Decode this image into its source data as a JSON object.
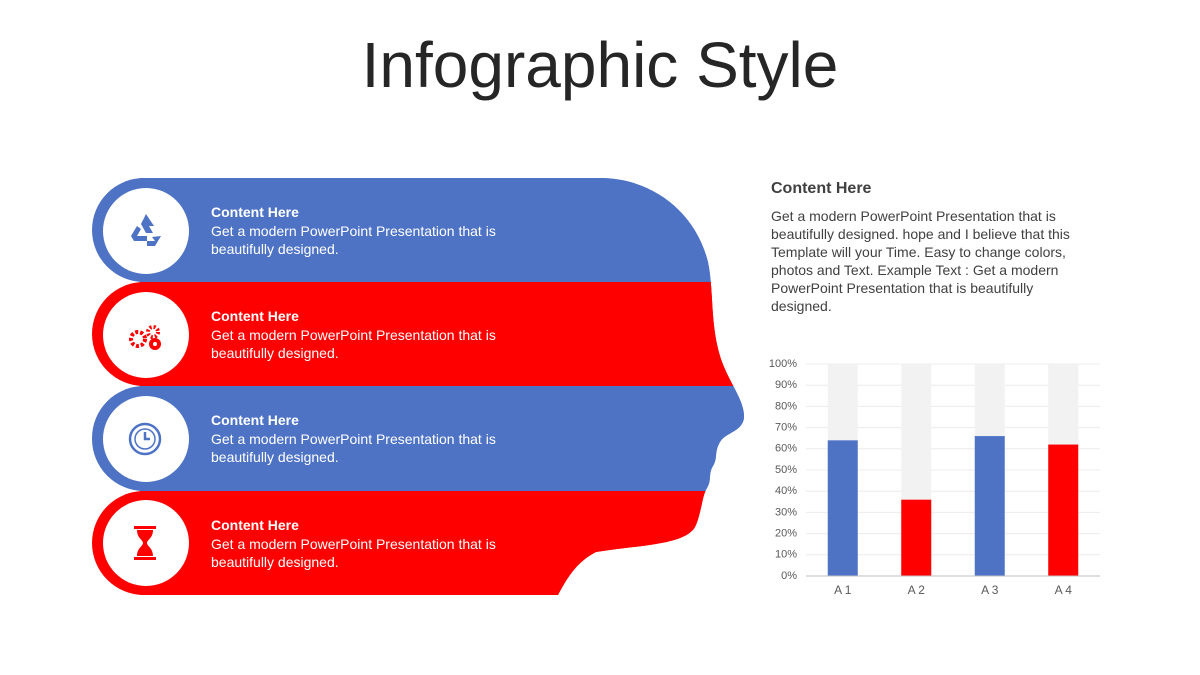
{
  "title": "Infographic Style",
  "bands": [
    {
      "heading": "Content  Here",
      "text": "Get a modern PowerPoint  Presentation that is beautifully designed.",
      "color": "#4e73c5"
    },
    {
      "heading": "Content  Here",
      "text": "Get a modern PowerPoint  Presentation that is beautifully designed.",
      "color": "#ff0000"
    },
    {
      "heading": "Content  Here",
      "text": "Get a modern PowerPoint  Presentation that is beautifully designed.",
      "color": "#4e73c5"
    },
    {
      "heading": "Content  Here",
      "text": "Get a modern PowerPoint  Presentation that is beautifully designed.",
      "color": "#ff0000"
    }
  ],
  "panel": {
    "heading": "Content  Here",
    "text": "Get a modern PowerPoint  Presentation that is beautifully designed. hope and I believe that this Template will your Time. Easy to change colors, photos and Text. Example Text : Get a modern PowerPoint  Presentation that is beautifully designed."
  },
  "chart_data": {
    "type": "bar",
    "categories": [
      "A 1",
      "A 2",
      "A 3",
      "A 4"
    ],
    "values": [
      64,
      36,
      66,
      62
    ],
    "colors": [
      "#4e73c5",
      "#ff0000",
      "#4e73c5",
      "#ff0000"
    ],
    "track_color": "#f2f2f2",
    "ylim": [
      0,
      100
    ],
    "yticks": [
      {
        "value": 0,
        "label": "0%"
      },
      {
        "value": 10,
        "label": "10%"
      },
      {
        "value": 20,
        "label": "20%"
      },
      {
        "value": 30,
        "label": "30%"
      },
      {
        "value": 40,
        "label": "40%"
      },
      {
        "value": 50,
        "label": "50%"
      },
      {
        "value": 60,
        "label": "60%"
      },
      {
        "value": 70,
        "label": "70%"
      },
      {
        "value": 80,
        "label": "80%"
      },
      {
        "value": 90,
        "label": "90%"
      },
      {
        "value": 100,
        "label": "100%"
      }
    ],
    "grid": true
  }
}
